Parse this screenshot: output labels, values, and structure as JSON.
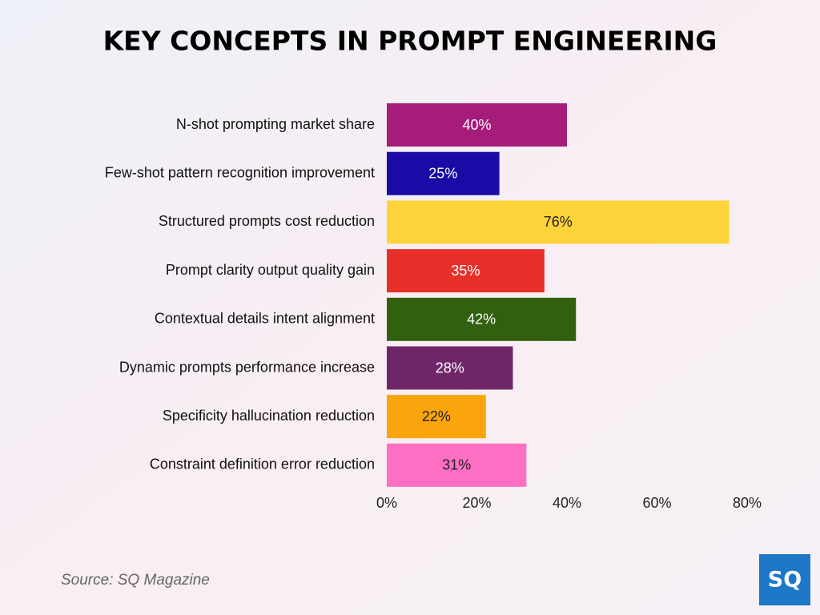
{
  "chart_data": {
    "type": "barh",
    "title": "KEY CONCEPTS IN PROMPT ENGINEERING",
    "categories": [
      "N-shot prompting market share",
      "Few-shot pattern recognition improvement",
      "Structured prompts cost reduction",
      "Prompt clarity output quality gain",
      "Contextual details intent alignment",
      "Dynamic prompts performance increase",
      "Specificity hallucination reduction",
      "Constraint definition error reduction"
    ],
    "values": [
      40,
      25,
      76,
      35,
      42,
      28,
      22,
      31
    ],
    "value_labels": [
      "40%",
      "25%",
      "76%",
      "35%",
      "42%",
      "28%",
      "22%",
      "31%"
    ],
    "colors": [
      "#a61c7a",
      "#1a0aa6",
      "#fdd33a",
      "#e8302a",
      "#32600f",
      "#6e2669",
      "#f9a50b",
      "#fe6fc4"
    ],
    "xlim": [
      0,
      80
    ],
    "xticks": [
      {
        "value": 0,
        "label": "0%"
      },
      {
        "value": 20,
        "label": "20%"
      },
      {
        "value": 40,
        "label": "40%"
      },
      {
        "value": 60,
        "label": "60%"
      },
      {
        "value": 80,
        "label": "80%"
      }
    ],
    "grid": false
  },
  "source": "Source: SQ Magazine",
  "logo": "SQ"
}
